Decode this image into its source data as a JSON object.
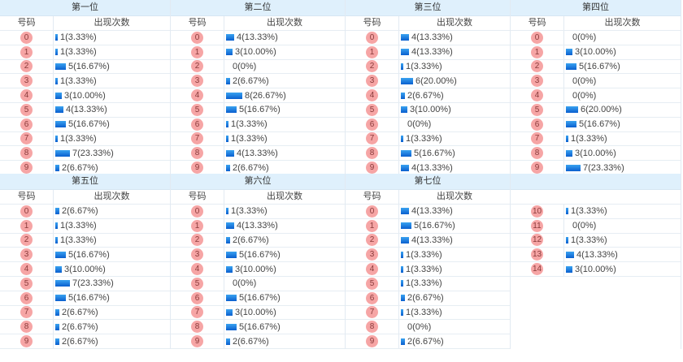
{
  "headers": {
    "number": "号码",
    "count": "出现次数"
  },
  "colors": {
    "header_bg": "#dff0fc",
    "ball": "#f6a5a5",
    "bar": "#0a7be0"
  },
  "positions": [
    {
      "title": "第一位",
      "rows": [
        {
          "n": "0",
          "c": 1,
          "t": "1(3.33%)"
        },
        {
          "n": "1",
          "c": 1,
          "t": "1(3.33%)"
        },
        {
          "n": "2",
          "c": 5,
          "t": "5(16.67%)"
        },
        {
          "n": "3",
          "c": 1,
          "t": "1(3.33%)"
        },
        {
          "n": "4",
          "c": 3,
          "t": "3(10.00%)"
        },
        {
          "n": "5",
          "c": 4,
          "t": "4(13.33%)"
        },
        {
          "n": "6",
          "c": 5,
          "t": "5(16.67%)"
        },
        {
          "n": "7",
          "c": 1,
          "t": "1(3.33%)"
        },
        {
          "n": "8",
          "c": 7,
          "t": "7(23.33%)"
        },
        {
          "n": "9",
          "c": 2,
          "t": "2(6.67%)"
        }
      ]
    },
    {
      "title": "第二位",
      "rows": [
        {
          "n": "0",
          "c": 4,
          "t": "4(13.33%)"
        },
        {
          "n": "1",
          "c": 3,
          "t": "3(10.00%)"
        },
        {
          "n": "2",
          "c": 0,
          "t": "0(0%)"
        },
        {
          "n": "3",
          "c": 2,
          "t": "2(6.67%)"
        },
        {
          "n": "4",
          "c": 8,
          "t": "8(26.67%)"
        },
        {
          "n": "5",
          "c": 5,
          "t": "5(16.67%)"
        },
        {
          "n": "6",
          "c": 1,
          "t": "1(3.33%)"
        },
        {
          "n": "7",
          "c": 1,
          "t": "1(3.33%)"
        },
        {
          "n": "8",
          "c": 4,
          "t": "4(13.33%)"
        },
        {
          "n": "9",
          "c": 2,
          "t": "2(6.67%)"
        }
      ]
    },
    {
      "title": "第三位",
      "rows": [
        {
          "n": "0",
          "c": 4,
          "t": "4(13.33%)"
        },
        {
          "n": "1",
          "c": 4,
          "t": "4(13.33%)"
        },
        {
          "n": "2",
          "c": 1,
          "t": "1(3.33%)"
        },
        {
          "n": "3",
          "c": 6,
          "t": "6(20.00%)"
        },
        {
          "n": "4",
          "c": 2,
          "t": "2(6.67%)"
        },
        {
          "n": "5",
          "c": 3,
          "t": "3(10.00%)"
        },
        {
          "n": "6",
          "c": 0,
          "t": "0(0%)"
        },
        {
          "n": "7",
          "c": 1,
          "t": "1(3.33%)"
        },
        {
          "n": "8",
          "c": 5,
          "t": "5(16.67%)"
        },
        {
          "n": "9",
          "c": 4,
          "t": "4(13.33%)"
        }
      ]
    },
    {
      "title": "第四位",
      "rows": [
        {
          "n": "0",
          "c": 0,
          "t": "0(0%)"
        },
        {
          "n": "1",
          "c": 3,
          "t": "3(10.00%)"
        },
        {
          "n": "2",
          "c": 5,
          "t": "5(16.67%)"
        },
        {
          "n": "3",
          "c": 0,
          "t": "0(0%)"
        },
        {
          "n": "4",
          "c": 0,
          "t": "0(0%)"
        },
        {
          "n": "5",
          "c": 6,
          "t": "6(20.00%)"
        },
        {
          "n": "6",
          "c": 5,
          "t": "5(16.67%)"
        },
        {
          "n": "7",
          "c": 1,
          "t": "1(3.33%)"
        },
        {
          "n": "8",
          "c": 3,
          "t": "3(10.00%)"
        },
        {
          "n": "9",
          "c": 7,
          "t": "7(23.33%)"
        }
      ]
    },
    {
      "title": "第五位",
      "rows": [
        {
          "n": "0",
          "c": 2,
          "t": "2(6.67%)"
        },
        {
          "n": "1",
          "c": 1,
          "t": "1(3.33%)"
        },
        {
          "n": "2",
          "c": 1,
          "t": "1(3.33%)"
        },
        {
          "n": "3",
          "c": 5,
          "t": "5(16.67%)"
        },
        {
          "n": "4",
          "c": 3,
          "t": "3(10.00%)"
        },
        {
          "n": "5",
          "c": 7,
          "t": "7(23.33%)"
        },
        {
          "n": "6",
          "c": 5,
          "t": "5(16.67%)"
        },
        {
          "n": "7",
          "c": 2,
          "t": "2(6.67%)"
        },
        {
          "n": "8",
          "c": 2,
          "t": "2(6.67%)"
        },
        {
          "n": "9",
          "c": 2,
          "t": "2(6.67%)"
        }
      ]
    },
    {
      "title": "第六位",
      "rows": [
        {
          "n": "0",
          "c": 1,
          "t": "1(3.33%)"
        },
        {
          "n": "1",
          "c": 4,
          "t": "4(13.33%)"
        },
        {
          "n": "2",
          "c": 2,
          "t": "2(6.67%)"
        },
        {
          "n": "3",
          "c": 5,
          "t": "5(16.67%)"
        },
        {
          "n": "4",
          "c": 3,
          "t": "3(10.00%)"
        },
        {
          "n": "5",
          "c": 0,
          "t": "0(0%)"
        },
        {
          "n": "6",
          "c": 5,
          "t": "5(16.67%)"
        },
        {
          "n": "7",
          "c": 3,
          "t": "3(10.00%)"
        },
        {
          "n": "8",
          "c": 5,
          "t": "5(16.67%)"
        },
        {
          "n": "9",
          "c": 2,
          "t": "2(6.67%)"
        }
      ]
    },
    {
      "title": "第七位",
      "rows": [
        {
          "n": "0",
          "c": 4,
          "t": "4(13.33%)"
        },
        {
          "n": "1",
          "c": 5,
          "t": "5(16.67%)"
        },
        {
          "n": "2",
          "c": 4,
          "t": "4(13.33%)"
        },
        {
          "n": "3",
          "c": 1,
          "t": "1(3.33%)"
        },
        {
          "n": "4",
          "c": 1,
          "t": "1(3.33%)"
        },
        {
          "n": "5",
          "c": 1,
          "t": "1(3.33%)"
        },
        {
          "n": "6",
          "c": 2,
          "t": "2(6.67%)"
        },
        {
          "n": "7",
          "c": 1,
          "t": "1(3.33%)"
        },
        {
          "n": "8",
          "c": 0,
          "t": "0(0%)"
        },
        {
          "n": "9",
          "c": 2,
          "t": "2(6.67%)"
        }
      ]
    },
    {
      "title": "",
      "rows": [
        {
          "n": "10",
          "c": 1,
          "t": "1(3.33%)"
        },
        {
          "n": "11",
          "c": 0,
          "t": "0(0%)"
        },
        {
          "n": "12",
          "c": 1,
          "t": "1(3.33%)"
        },
        {
          "n": "13",
          "c": 4,
          "t": "4(13.33%)"
        },
        {
          "n": "14",
          "c": 3,
          "t": "3(10.00%)"
        }
      ]
    }
  ]
}
